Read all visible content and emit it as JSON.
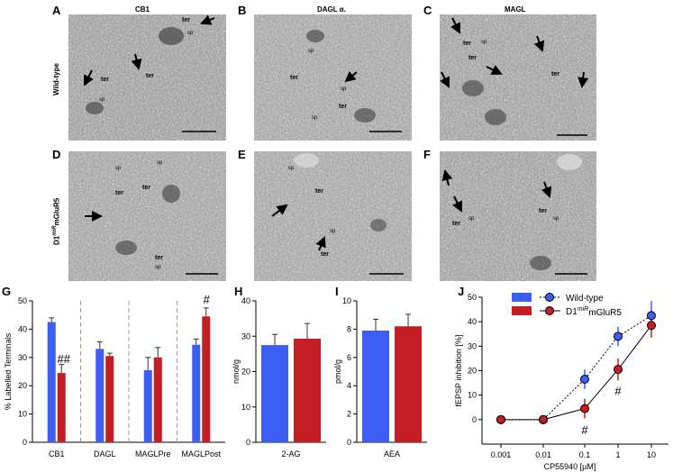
{
  "panel_letters": [
    "A",
    "B",
    "C",
    "D",
    "E",
    "F",
    "G",
    "H",
    "I",
    "J"
  ],
  "column_titles": [
    "CB1",
    "DAGL α.",
    "MAGL"
  ],
  "row_labels": {
    "wild": "Wild-type",
    "mut_base": "D1",
    "mut_sup": "miR",
    "mut_tail": "mGluR5"
  },
  "micrograph_labels": {
    "A": [
      "ter",
      "sp",
      "ter",
      "ter",
      "sp"
    ],
    "B": [
      "sp",
      "ter",
      "sp",
      "sp",
      "ter"
    ],
    "C": [
      "ter",
      "sp",
      "ter",
      "ter"
    ],
    "D": [
      "sp",
      "sp",
      "ter",
      "ter",
      "ter",
      "sp"
    ],
    "E": [
      "sp",
      "ter",
      "sp",
      "ter"
    ],
    "F": [
      "ter",
      "sp",
      "ter",
      "sp"
    ]
  },
  "colors": {
    "wild": "#3d5ef5",
    "mutant": "#c41e24",
    "micro_bg": "#9a9a9a"
  },
  "chart_data": [
    {
      "id": "G",
      "type": "bar",
      "ylabel": "% Labelled Terminals",
      "ylim": [
        0,
        50
      ],
      "yticks": [
        0,
        10,
        20,
        30,
        40,
        50
      ],
      "categories": [
        "CB1",
        "DAGL",
        "MAGLPre",
        "MAGLPost"
      ],
      "series": [
        {
          "values": [
            42.5,
            33,
            25.5,
            34.5
          ],
          "errors": [
            1.5,
            2.5,
            4.5,
            2
          ]
        },
        {
          "values": [
            24.5,
            30.5,
            30,
            44.5
          ],
          "errors": [
            3,
            1,
            3.5,
            3
          ]
        }
      ],
      "annotations": [
        "##",
        "#"
      ]
    },
    {
      "id": "H",
      "type": "bar",
      "ylabel": "nmol/g",
      "xlabel": "2-AG",
      "ylim": [
        0,
        40
      ],
      "yticks": [
        0,
        10,
        20,
        30,
        40
      ],
      "series": [
        {
          "values": [
            27.5
          ],
          "errors": [
            3
          ]
        },
        {
          "values": [
            29.3
          ],
          "errors": [
            4.3
          ]
        }
      ]
    },
    {
      "id": "I",
      "type": "bar",
      "ylabel": "pmol/g",
      "xlabel": "AEA",
      "ylim": [
        0,
        10
      ],
      "yticks": [
        0,
        2,
        4,
        6,
        8,
        10
      ],
      "series": [
        {
          "values": [
            7.9
          ],
          "errors": [
            0.8
          ]
        },
        {
          "values": [
            8.2
          ],
          "errors": [
            0.85
          ]
        }
      ]
    },
    {
      "id": "J",
      "type": "line",
      "ylabel": "fEPSP inhibition [%]",
      "xlabel": "CP55940 [µM]",
      "xscale": "log",
      "xticks": [
        "0.001",
        "0.01",
        "0.1",
        "1",
        "10"
      ],
      "ylim": [
        -10,
        50
      ],
      "yticks": [
        0,
        10,
        20,
        30,
        40,
        50
      ],
      "legend": [
        "Wild-type",
        "D1",
        "miR",
        "mGluR5"
      ],
      "series": [
        {
          "x": [
            0.001,
            0.01,
            0.1,
            1,
            10
          ],
          "values": [
            0,
            0,
            16.5,
            34,
            42.5
          ],
          "errors": [
            0,
            0,
            4,
            4,
            6
          ]
        },
        {
          "x": [
            0.001,
            0.01,
            0.1,
            1,
            10
          ],
          "values": [
            0,
            0,
            4.5,
            20.5,
            38.5
          ],
          "errors": [
            0,
            0,
            4,
            4.5,
            5
          ]
        }
      ],
      "annotations": [
        "#",
        "#"
      ]
    }
  ]
}
